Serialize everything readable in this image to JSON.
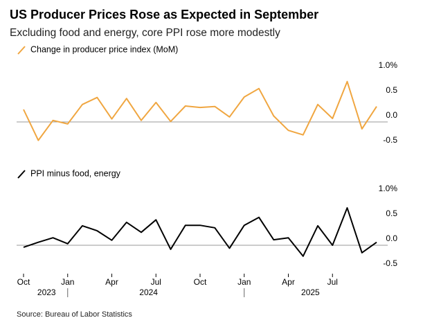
{
  "title": "US Producer Prices Rose as Expected in September",
  "subtitle": "Excluding food and energy, core PPI rose more modestly",
  "source": "Source: Bureau of Labor Statistics",
  "chart_data": [
    {
      "type": "line",
      "x": [
        "2023-10",
        "2023-11",
        "2023-12",
        "2024-01",
        "2024-02",
        "2024-03",
        "2024-04",
        "2024-05",
        "2024-06",
        "2024-07",
        "2024-08",
        "2024-09",
        "2024-10",
        "2024-11",
        "2024-12",
        "2025-01",
        "2025-02",
        "2025-03",
        "2025-04",
        "2025-05",
        "2025-06",
        "2025-07",
        "2025-08",
        "2025-09",
        "2025-10"
      ],
      "series": [
        {
          "name": "Change in producer price index (MoM)",
          "color": "#f0a640",
          "values": [
            0.25,
            -0.37,
            0.03,
            -0.04,
            0.35,
            0.49,
            0.06,
            0.47,
            0.03,
            0.39,
            0.01,
            0.32,
            0.29,
            0.31,
            0.1,
            0.5,
            0.67,
            0.12,
            -0.17,
            -0.26,
            0.35,
            0.07,
            0.81,
            -0.14,
            0.31
          ]
        }
      ],
      "ylim": [
        -0.5,
        1.0
      ],
      "yticks": [
        {
          "value": 1.0,
          "label": "1.0%"
        },
        0.5,
        {
          "value": 0,
          "label": "0.0"
        },
        -0.5
      ],
      "zero_line": true
    },
    {
      "type": "line",
      "x": [
        "2023-10",
        "2023-11",
        "2023-12",
        "2024-01",
        "2024-02",
        "2024-03",
        "2024-04",
        "2024-05",
        "2024-06",
        "2024-07",
        "2024-08",
        "2024-09",
        "2024-10",
        "2024-11",
        "2024-12",
        "2025-01",
        "2025-02",
        "2025-03",
        "2025-04",
        "2025-05",
        "2025-06",
        "2025-07",
        "2025-08",
        "2025-09",
        "2025-10"
      ],
      "series": [
        {
          "name": "PPI minus food, energy",
          "color": "#000000",
          "values": [
            -0.04,
            0.06,
            0.15,
            0.03,
            0.39,
            0.29,
            0.1,
            0.46,
            0.26,
            0.51,
            -0.08,
            0.4,
            0.4,
            0.35,
            -0.06,
            0.4,
            0.56,
            0.11,
            0.15,
            -0.22,
            0.39,
            0.0,
            0.75,
            -0.15,
            0.06
          ]
        }
      ],
      "ylim": [
        -0.5,
        1.0
      ],
      "yticks": [
        {
          "value": 1.0,
          "label": "1.0%"
        },
        0.5,
        {
          "value": 0,
          "label": "0.0"
        },
        -0.5
      ],
      "zero_line": true,
      "xticks": [
        {
          "value": "2023-10",
          "label": "Oct"
        },
        {
          "value": "2024-01",
          "label": "Jan"
        },
        {
          "value": "2024-04",
          "label": "Apr"
        },
        {
          "value": "2024-07",
          "label": "Jul"
        },
        {
          "value": "2024-10",
          "label": "Oct"
        },
        {
          "value": "2025-01",
          "label": "Jan"
        },
        {
          "value": "2025-04",
          "label": "Apr"
        },
        {
          "value": "2025-07",
          "label": "Jul"
        }
      ],
      "xgroups": [
        {
          "label": "2023",
          "start": "2023-10",
          "end": "2023-12"
        },
        {
          "label": "2024",
          "start": "2024-01",
          "end": "2024-12"
        },
        {
          "label": "2025",
          "start": "2025-01",
          "end": "2025-10"
        }
      ]
    }
  ]
}
